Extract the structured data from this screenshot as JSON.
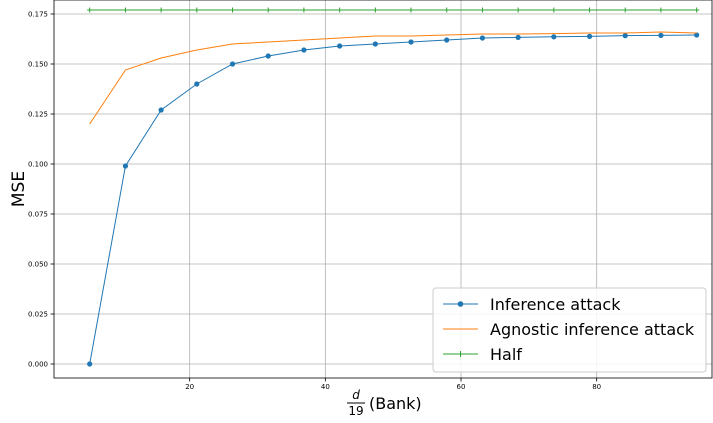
{
  "chart_data": {
    "type": "line",
    "title": "",
    "xlabel": "(Bank)",
    "xlabel_fraction": {
      "numerator": "d",
      "denominator": "19"
    },
    "ylabel": "MSE",
    "xlim": [
      0,
      97
    ],
    "ylim": [
      -0.007,
      0.182
    ],
    "xticks": [
      20,
      40,
      60,
      80
    ],
    "xtick_labels": [
      "20",
      "40",
      "60",
      "80"
    ],
    "yticks": [
      0.0,
      0.025,
      0.05,
      0.075,
      0.1,
      0.125,
      0.15,
      0.175
    ],
    "ytick_labels": [
      "0.000",
      "0.025",
      "0.050",
      "0.075",
      "0.100",
      "0.125",
      "0.150",
      "0.175"
    ],
    "grid": true,
    "legend_position": "bottom-right",
    "x": [
      5.26,
      10.53,
      15.79,
      21.05,
      26.32,
      31.58,
      36.84,
      42.11,
      47.37,
      52.63,
      57.89,
      63.16,
      68.42,
      73.68,
      78.95,
      84.21,
      89.47,
      94.74
    ],
    "series": [
      {
        "name": "Inference attack",
        "color": "#1f77b4",
        "marker": "circle",
        "values": [
          0.0,
          0.099,
          0.127,
          0.14,
          0.15,
          0.154,
          0.157,
          0.159,
          0.16,
          0.161,
          0.162,
          0.163,
          0.1633,
          0.1636,
          0.1638,
          0.1642,
          0.1643,
          0.1645
        ]
      },
      {
        "name": "Agnostic inference attack",
        "color": "#ff7f0e",
        "marker": "none",
        "values": [
          0.12,
          0.147,
          0.153,
          0.157,
          0.16,
          0.161,
          0.162,
          0.163,
          0.164,
          0.164,
          0.1645,
          0.165,
          0.165,
          0.1652,
          0.1655,
          0.1655,
          0.166,
          0.1655
        ]
      },
      {
        "name": "Half",
        "color": "#2ca02c",
        "marker": "plus",
        "values": [
          0.177,
          0.177,
          0.177,
          0.177,
          0.177,
          0.177,
          0.177,
          0.177,
          0.177,
          0.177,
          0.177,
          0.177,
          0.177,
          0.177,
          0.177,
          0.177,
          0.177,
          0.177
        ]
      }
    ]
  }
}
